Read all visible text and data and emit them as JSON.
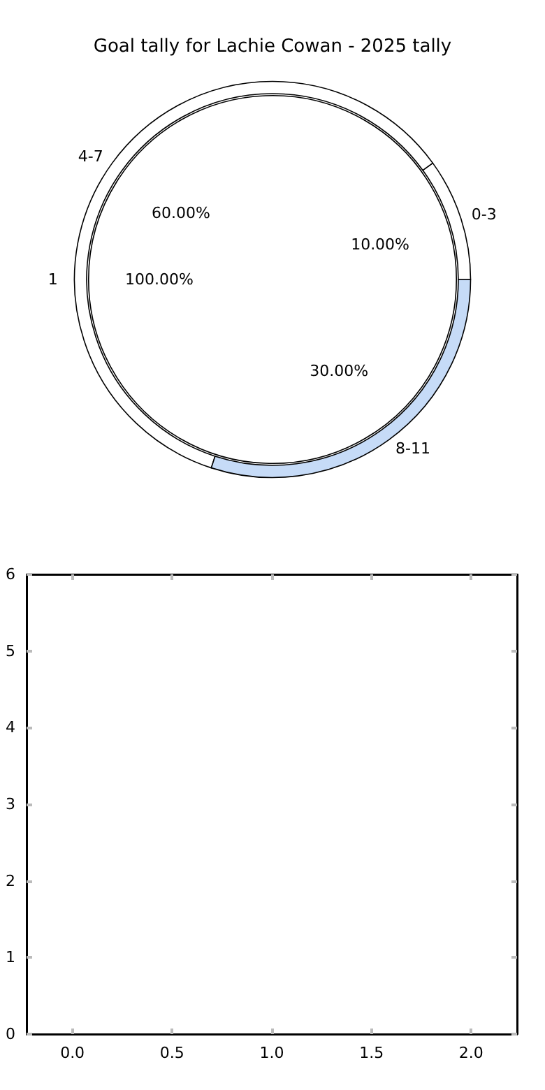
{
  "chart_data": [
    {
      "type": "pie",
      "title": "Goal tally for Lachie Cowan - 2025 tally",
      "categories": [
        "1"
      ],
      "values": [
        100
      ],
      "colors": [
        "#ffffff"
      ],
      "value_labels": [
        "100.00%"
      ]
    },
    {
      "type": "donut",
      "categories": [
        "0-3",
        "4-7",
        "8-11"
      ],
      "values": [
        10,
        60,
        30
      ],
      "colors": [
        "#ffffff",
        "#ffffff",
        "#c6dbf7"
      ],
      "value_labels": [
        "10.00%",
        "60.00%",
        "30.00%"
      ]
    },
    {
      "type": "scatter",
      "xlim": [
        -0.23,
        2.23
      ],
      "xticks": [
        {
          "value": 0,
          "label": "0.0"
        },
        {
          "value": 0.5,
          "label": "0.5"
        },
        {
          "value": 1,
          "label": "1.0"
        },
        {
          "value": 1.5,
          "label": "1.5"
        },
        {
          "value": 2,
          "label": "2.0"
        }
      ],
      "ylim": [
        0,
        6
      ],
      "yticks": [
        0,
        1,
        2,
        3,
        4,
        5,
        6
      ]
    }
  ]
}
